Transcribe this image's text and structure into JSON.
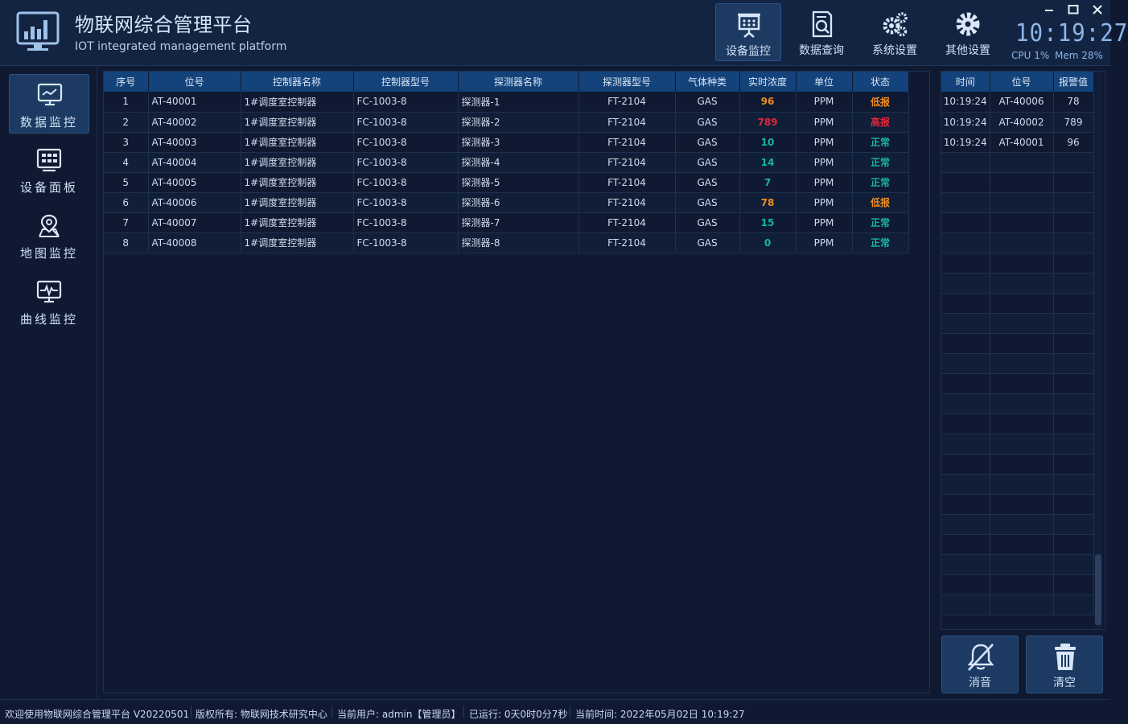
{
  "app": {
    "title": "物联网综合管理平台",
    "subtitle": "IOT integrated management platform"
  },
  "topnav": [
    {
      "label": "设备监控",
      "icon": "presentation-board-icon",
      "active": true
    },
    {
      "label": "数据查询",
      "icon": "document-search-icon",
      "active": false
    },
    {
      "label": "系统设置",
      "icon": "gears-icon",
      "active": false
    },
    {
      "label": "其他设置",
      "icon": "gear-icon",
      "active": false
    }
  ],
  "clock": {
    "time": "10:19:27"
  },
  "sys": {
    "cpu": "CPU 1%",
    "mem": "Mem 28%"
  },
  "sidebar": [
    {
      "label": "数据监控",
      "icon": "monitor-chart-icon",
      "active": true
    },
    {
      "label": "设备面板",
      "icon": "device-grid-icon",
      "active": false
    },
    {
      "label": "地图监控",
      "icon": "map-pin-icon",
      "active": false
    },
    {
      "label": "曲线监控",
      "icon": "curve-monitor-icon",
      "active": false
    }
  ],
  "table": {
    "headers": [
      "序号",
      "位号",
      "控制器名称",
      "控制器型号",
      "探测器名称",
      "探测器型号",
      "气体种类",
      "实时浓度",
      "单位",
      "状态"
    ],
    "rows": [
      {
        "no": "1",
        "tag": "AT-40001",
        "ctrl_name": "1#调度室控制器",
        "ctrl_model": "FC-1003-8",
        "det_name": "探测器-1",
        "det_model": "FT-2104",
        "gas": "GAS",
        "value": "96",
        "unit": "PPM",
        "status": "低报"
      },
      {
        "no": "2",
        "tag": "AT-40002",
        "ctrl_name": "1#调度室控制器",
        "ctrl_model": "FC-1003-8",
        "det_name": "探测器-2",
        "det_model": "FT-2104",
        "gas": "GAS",
        "value": "789",
        "unit": "PPM",
        "status": "高报"
      },
      {
        "no": "3",
        "tag": "AT-40003",
        "ctrl_name": "1#调度室控制器",
        "ctrl_model": "FC-1003-8",
        "det_name": "探测器-3",
        "det_model": "FT-2104",
        "gas": "GAS",
        "value": "10",
        "unit": "PPM",
        "status": "正常"
      },
      {
        "no": "4",
        "tag": "AT-40004",
        "ctrl_name": "1#调度室控制器",
        "ctrl_model": "FC-1003-8",
        "det_name": "探测器-4",
        "det_model": "FT-2104",
        "gas": "GAS",
        "value": "14",
        "unit": "PPM",
        "status": "正常"
      },
      {
        "no": "5",
        "tag": "AT-40005",
        "ctrl_name": "1#调度室控制器",
        "ctrl_model": "FC-1003-8",
        "det_name": "探测器-5",
        "det_model": "FT-2104",
        "gas": "GAS",
        "value": "7",
        "unit": "PPM",
        "status": "正常"
      },
      {
        "no": "6",
        "tag": "AT-40006",
        "ctrl_name": "1#调度室控制器",
        "ctrl_model": "FC-1003-8",
        "det_name": "探测器-6",
        "det_model": "FT-2104",
        "gas": "GAS",
        "value": "78",
        "unit": "PPM",
        "status": "低报"
      },
      {
        "no": "7",
        "tag": "AT-40007",
        "ctrl_name": "1#调度室控制器",
        "ctrl_model": "FC-1003-8",
        "det_name": "探测器-7",
        "det_model": "FT-2104",
        "gas": "GAS",
        "value": "15",
        "unit": "PPM",
        "status": "正常"
      },
      {
        "no": "8",
        "tag": "AT-40008",
        "ctrl_name": "1#调度室控制器",
        "ctrl_model": "FC-1003-8",
        "det_name": "探测器-8",
        "det_model": "FT-2104",
        "gas": "GAS",
        "value": "0",
        "unit": "PPM",
        "status": "正常"
      }
    ]
  },
  "status_colors": {
    "低报": "#f08c1e",
    "高报": "#e2283b",
    "正常": "#17b4a4"
  },
  "alarm": {
    "headers": [
      "时间",
      "位号",
      "报警值"
    ],
    "rows": [
      {
        "time": "10:19:24",
        "tag": "AT-40006",
        "value": "78"
      },
      {
        "time": "10:19:24",
        "tag": "AT-40002",
        "value": "789"
      },
      {
        "time": "10:19:24",
        "tag": "AT-40001",
        "value": "96"
      }
    ]
  },
  "actions": {
    "mute": "消音",
    "clear": "清空"
  },
  "statusbar": {
    "welcome": "欢迎使用物联网综合管理平台 V20220501",
    "copyright": "版权所有: 物联网技术研究中心",
    "user": "当前用户: admin【管理员】",
    "uptime": "已运行: 0天0时0分7秒",
    "now": "当前时间: 2022年05月02日 10:19:27"
  }
}
